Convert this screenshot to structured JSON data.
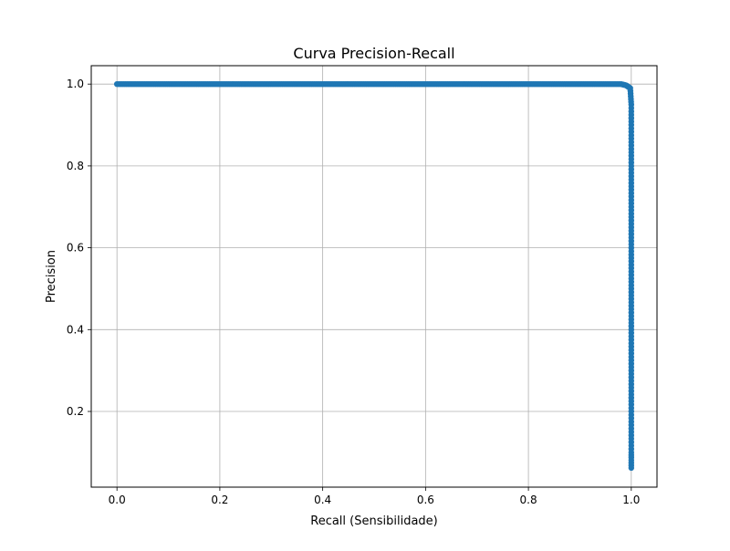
{
  "chart_data": {
    "type": "line",
    "title": "Curva Precision-Recall",
    "xlabel": "Recall (Sensibilidade)",
    "ylabel": "Precision",
    "xlim": [
      -0.05,
      1.05
    ],
    "ylim": [
      0.015,
      1.045
    ],
    "x_ticks": [
      0.0,
      0.2,
      0.4,
      0.6,
      0.8,
      1.0
    ],
    "x_tick_labels": [
      "0.0",
      "0.2",
      "0.4",
      "0.6",
      "0.8",
      "1.0"
    ],
    "y_ticks": [
      0.2,
      0.4,
      0.6,
      0.8,
      1.0
    ],
    "y_tick_labels": [
      "0.2",
      "0.4",
      "0.6",
      "0.8",
      "1.0"
    ],
    "grid": true,
    "marker": "circle",
    "series": [
      {
        "color": "#1f77b4",
        "points": [
          [
            0.0,
            1.0
          ],
          [
            0.02,
            1.0
          ],
          [
            0.04,
            1.0
          ],
          [
            0.06,
            1.0
          ],
          [
            0.08,
            1.0
          ],
          [
            0.1,
            1.0
          ],
          [
            0.12,
            1.0
          ],
          [
            0.14,
            1.0
          ],
          [
            0.16,
            1.0
          ],
          [
            0.18,
            1.0
          ],
          [
            0.2,
            1.0
          ],
          [
            0.22,
            1.0
          ],
          [
            0.24,
            1.0
          ],
          [
            0.26,
            1.0
          ],
          [
            0.28,
            1.0
          ],
          [
            0.3,
            1.0
          ],
          [
            0.32,
            1.0
          ],
          [
            0.34,
            1.0
          ],
          [
            0.36,
            1.0
          ],
          [
            0.38,
            1.0
          ],
          [
            0.4,
            1.0
          ],
          [
            0.42,
            1.0
          ],
          [
            0.44,
            1.0
          ],
          [
            0.46,
            1.0
          ],
          [
            0.48,
            1.0
          ],
          [
            0.5,
            1.0
          ],
          [
            0.52,
            1.0
          ],
          [
            0.54,
            1.0
          ],
          [
            0.56,
            1.0
          ],
          [
            0.58,
            1.0
          ],
          [
            0.6,
            1.0
          ],
          [
            0.62,
            1.0
          ],
          [
            0.64,
            1.0
          ],
          [
            0.66,
            1.0
          ],
          [
            0.68,
            1.0
          ],
          [
            0.7,
            1.0
          ],
          [
            0.72,
            1.0
          ],
          [
            0.74,
            1.0
          ],
          [
            0.76,
            1.0
          ],
          [
            0.78,
            1.0
          ],
          [
            0.8,
            1.0
          ],
          [
            0.82,
            1.0
          ],
          [
            0.84,
            1.0
          ],
          [
            0.86,
            1.0
          ],
          [
            0.88,
            1.0
          ],
          [
            0.9,
            1.0
          ],
          [
            0.92,
            1.0
          ],
          [
            0.94,
            1.0
          ],
          [
            0.96,
            1.0
          ],
          [
            0.98,
            1.0
          ],
          [
            0.99,
            0.997
          ],
          [
            0.998,
            0.99
          ],
          [
            1.0,
            0.95
          ],
          [
            1.0,
            0.9
          ],
          [
            1.0,
            0.85
          ],
          [
            1.0,
            0.8
          ],
          [
            1.0,
            0.75
          ],
          [
            1.0,
            0.7
          ],
          [
            1.0,
            0.65
          ],
          [
            1.0,
            0.6
          ],
          [
            1.0,
            0.55
          ],
          [
            1.0,
            0.5
          ],
          [
            1.0,
            0.45
          ],
          [
            1.0,
            0.4
          ],
          [
            1.0,
            0.35
          ],
          [
            1.0,
            0.3
          ],
          [
            1.0,
            0.25
          ],
          [
            1.0,
            0.2
          ],
          [
            1.0,
            0.15
          ],
          [
            1.0,
            0.1
          ],
          [
            1.0,
            0.062
          ]
        ]
      }
    ]
  }
}
